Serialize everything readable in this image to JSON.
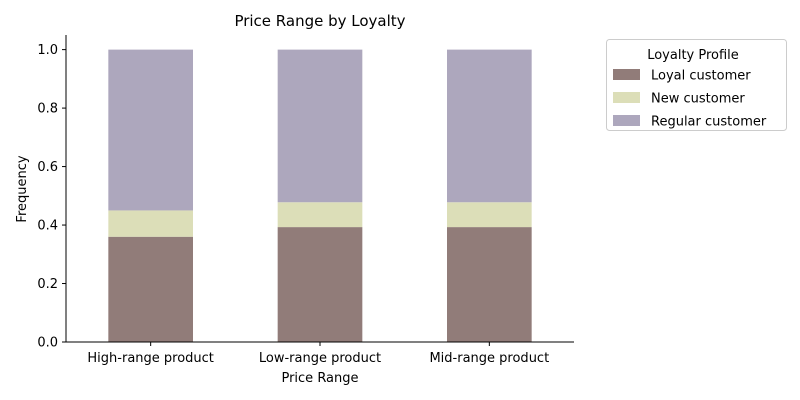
{
  "chart_data": {
    "type": "bar",
    "stacked": true,
    "title": "Price Range by Loyalty",
    "xlabel": "Price Range",
    "ylabel": "Frequency",
    "ylim": [
      0,
      1.05
    ],
    "yticks": [
      "0.0",
      "0.2",
      "0.4",
      "0.6",
      "0.8",
      "1.0"
    ],
    "categories": [
      "High-range product",
      "Low-range product",
      "Mid-range product"
    ],
    "series": [
      {
        "name": "Loyal customer",
        "values": [
          0.36,
          0.393,
          0.393
        ],
        "color": "#917c79"
      },
      {
        "name": "New customer",
        "values": [
          0.09,
          0.085,
          0.085
        ],
        "color": "#dcdeb8"
      },
      {
        "name": "Regular customer",
        "values": [
          0.55,
          0.522,
          0.522
        ],
        "color": "#ada7bd"
      }
    ],
    "legend": {
      "title": "Loyalty Profile",
      "position": "outside-top-right"
    },
    "grid": false
  }
}
